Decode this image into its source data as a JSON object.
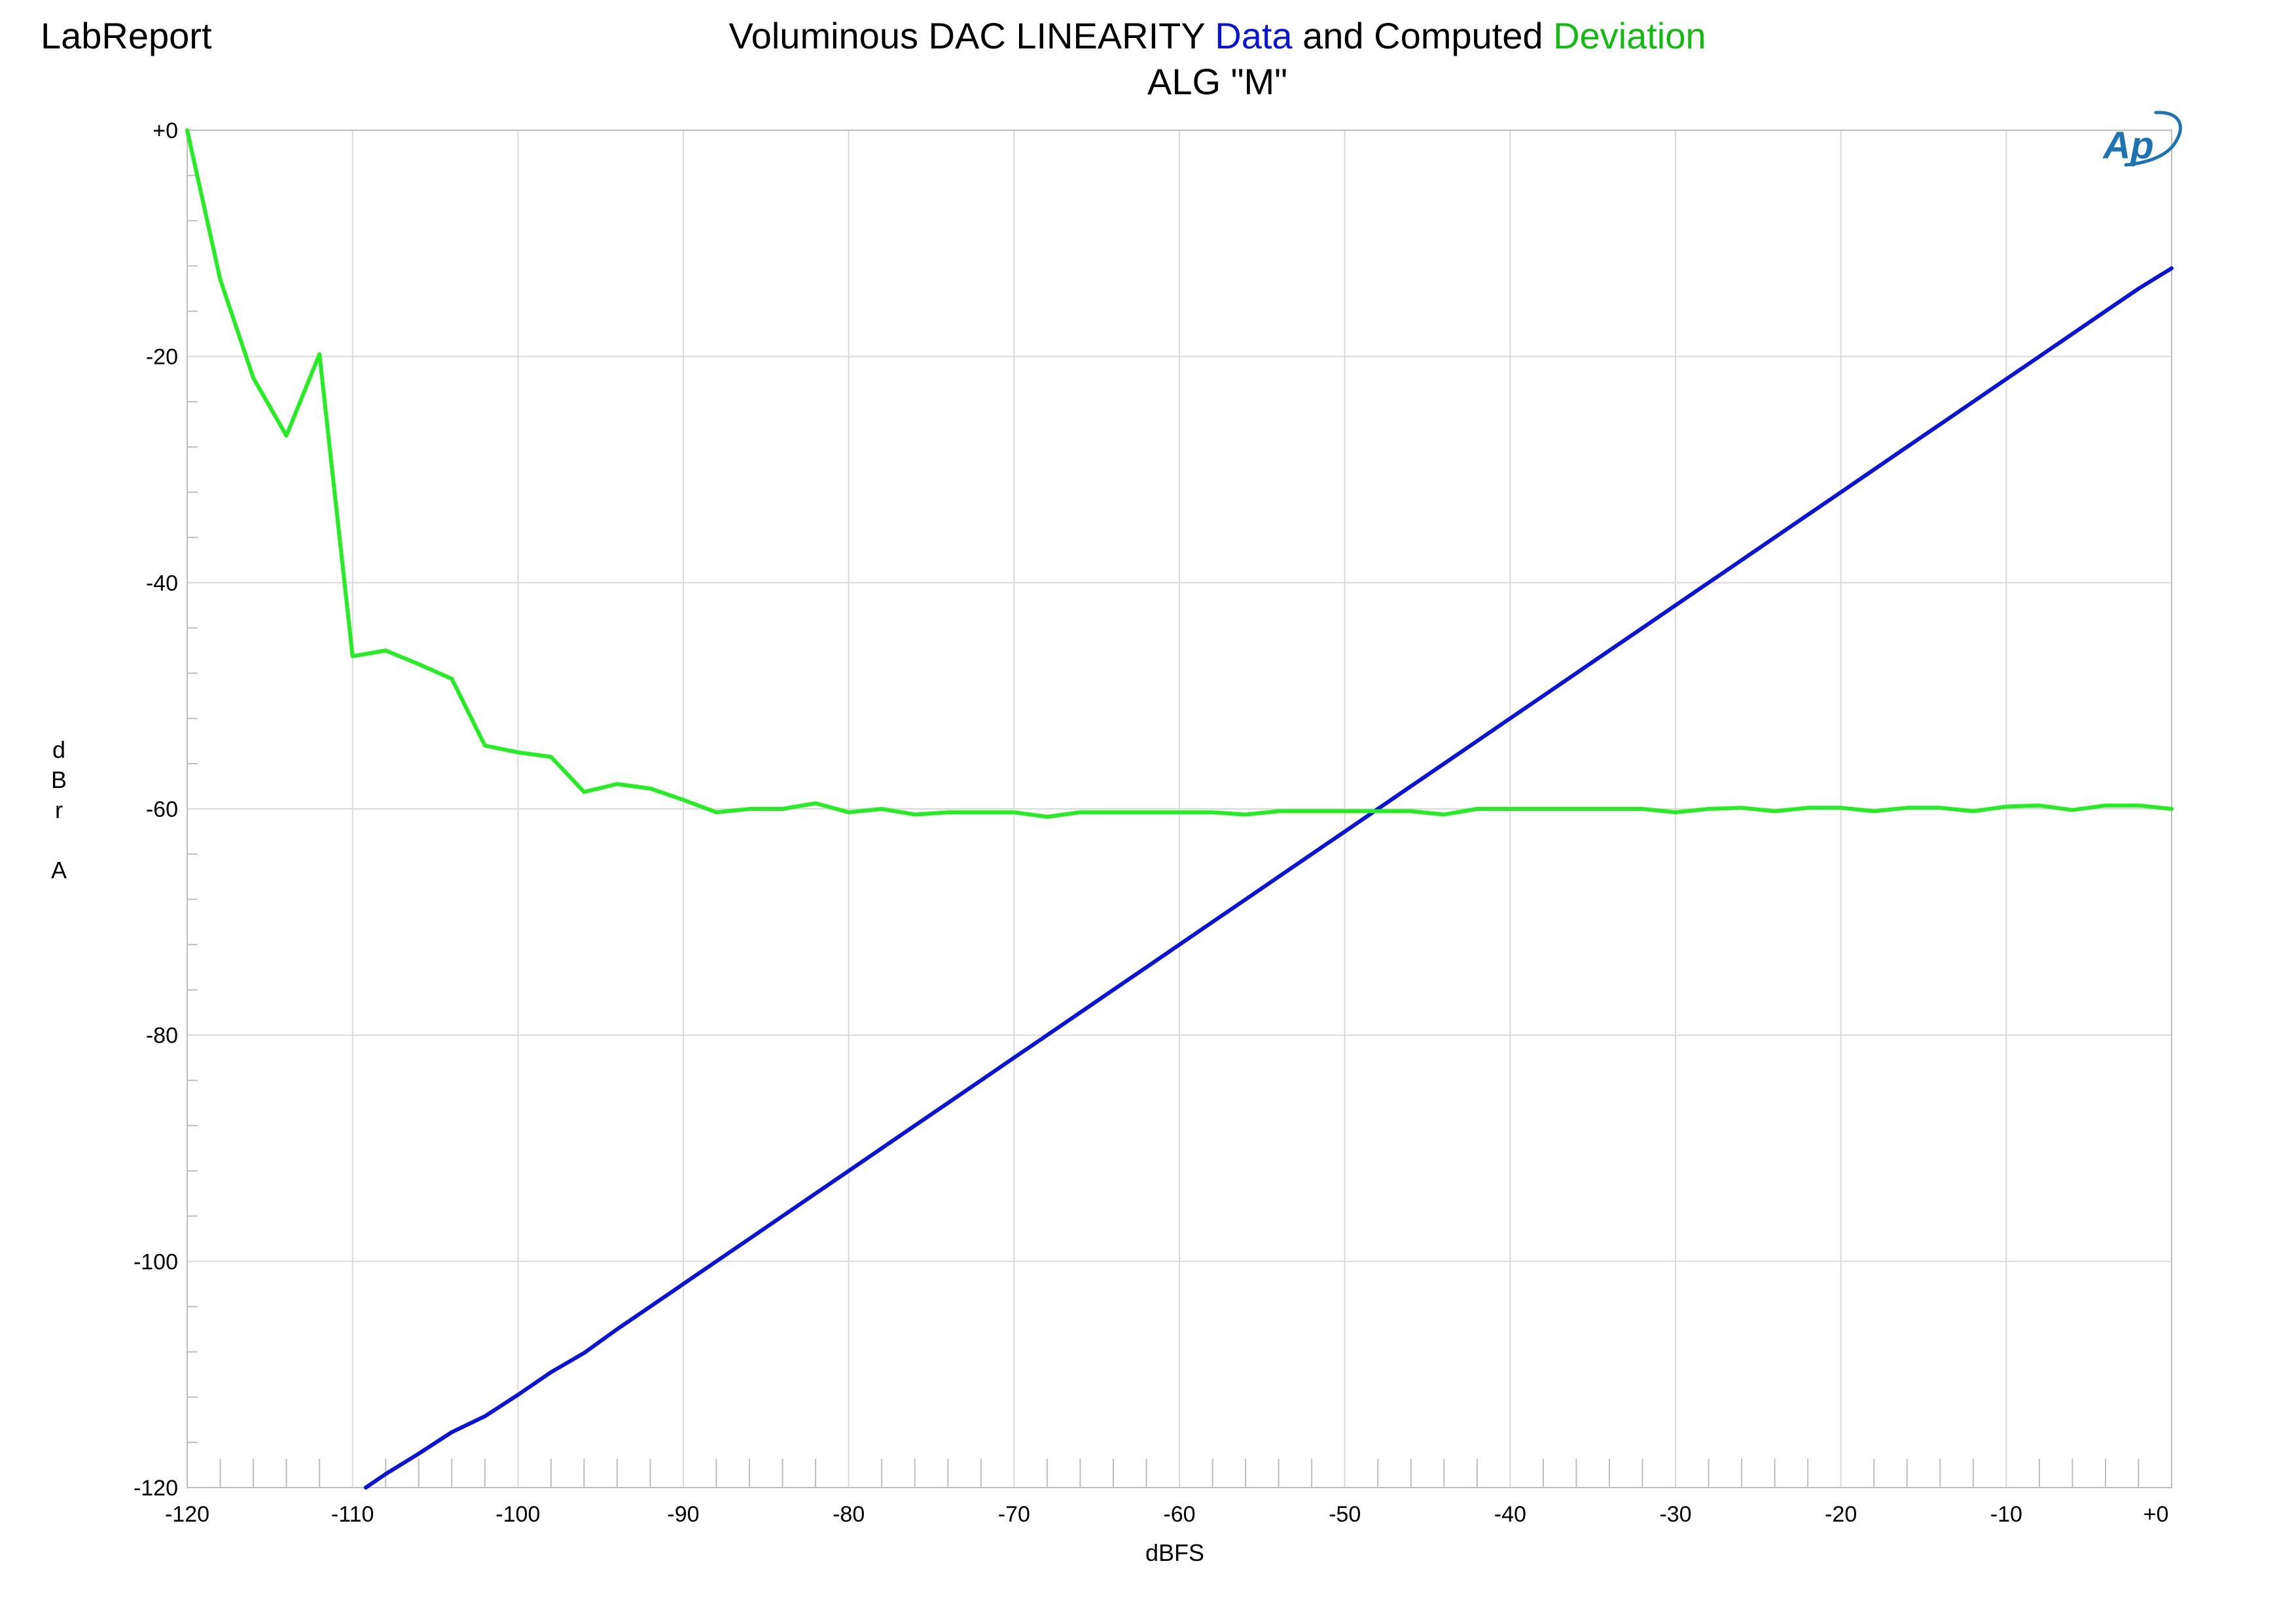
{
  "brand": "LabReport",
  "title": {
    "part1": "Voluminous  DAC LINEARITY  ",
    "part2": "Data",
    "part3": " and Computed ",
    "part4": "Deviation",
    "subtitle": "ALG \"M\""
  },
  "logo_text": "Ap",
  "colors": {
    "data": "#0a14d8",
    "deviation": "#22ee22",
    "deviation_title": "#11bb11",
    "grid": "#d9d9d9",
    "frame": "#bdbdbd"
  },
  "chart_data": {
    "type": "line",
    "xlabel": "dBFS",
    "ylabel": [
      "d",
      "B",
      "r",
      "",
      "A"
    ],
    "xlim": [
      -120,
      0
    ],
    "ylim": [
      -120,
      0
    ],
    "grid": true,
    "x_ticks": [
      -120,
      -110,
      -100,
      -90,
      -80,
      -70,
      -60,
      -50,
      -40,
      -30,
      -20,
      -10,
      0
    ],
    "x_tick_labels": [
      "-120",
      "-110",
      "-100",
      "-90",
      "-80",
      "-70",
      "-60",
      "-50",
      "-40",
      "-30",
      "-20",
      "-10",
      "+0"
    ],
    "y_ticks": [
      0,
      -20,
      -40,
      -60,
      -80,
      -100,
      -120
    ],
    "y_tick_labels": [
      "+0",
      "-20",
      "-40",
      "-60",
      "-80",
      "-100",
      "-120"
    ],
    "series": [
      {
        "name": "Data",
        "x": [
          -109.2,
          -108,
          -106,
          -104,
          -102,
          -100,
          -98,
          -96,
          -94,
          -92,
          -90,
          -88,
          -86,
          -84,
          -82,
          -80,
          -78,
          -76,
          -74,
          -72,
          -70,
          -68,
          -66,
          -64,
          -62,
          -60,
          -58,
          -56,
          -54,
          -52,
          -50,
          -48,
          -46,
          -44,
          -42,
          -40,
          -38,
          -36,
          -34,
          -32,
          -30,
          -28,
          -26,
          -24,
          -22,
          -20,
          -18,
          -16,
          -14,
          -12,
          -10,
          -8,
          -6,
          -4,
          -2,
          0
        ],
        "y": [
          -120,
          -118.8,
          -117,
          -115.1,
          -113.7,
          -111.8,
          -109.8,
          -108.1,
          -106,
          -104,
          -102,
          -100,
          -98,
          -96,
          -94,
          -92,
          -90,
          -88,
          -86,
          -84,
          -82,
          -80,
          -78,
          -76,
          -74,
          -72,
          -70,
          -68,
          -66,
          -64,
          -62,
          -60,
          -58,
          -56,
          -54,
          -52,
          -50,
          -48,
          -46,
          -44,
          -42,
          -40,
          -38,
          -36,
          -34,
          -32,
          -30,
          -28,
          -26,
          -24,
          -22,
          -20,
          -18,
          -16,
          -14,
          -12.2
        ]
      },
      {
        "name": "Deviation",
        "x": [
          -120,
          -118,
          -116,
          -114,
          -112,
          -110,
          -108,
          -106,
          -104,
          -102,
          -100,
          -98,
          -96,
          -94,
          -92,
          -90,
          -88,
          -86,
          -84,
          -82,
          -80,
          -78,
          -76,
          -74,
          -72,
          -70,
          -68,
          -66,
          -64,
          -62,
          -60,
          -58,
          -56,
          -54,
          -52,
          -50,
          -48,
          -46,
          -44,
          -42,
          -40,
          -38,
          -36,
          -34,
          -32,
          -30,
          -28,
          -26,
          -24,
          -22,
          -20,
          -18,
          -16,
          -14,
          -12,
          -10,
          -8,
          -6,
          -4,
          -2,
          0
        ],
        "y": [
          0,
          -13.2,
          -21.9,
          -27,
          -19.8,
          -46.5,
          -46,
          -47.2,
          -48.5,
          -54.4,
          -55,
          -55.4,
          -58.5,
          -57.8,
          -58.2,
          -59.2,
          -60.3,
          -60,
          -60,
          -59.5,
          -60.3,
          -60,
          -60.5,
          -60.3,
          -60.3,
          -60.3,
          -60.7,
          -60.3,
          -60.3,
          -60.3,
          -60.3,
          -60.3,
          -60.5,
          -60.2,
          -60.2,
          -60.2,
          -60.2,
          -60.2,
          -60.5,
          -60,
          -60,
          -60,
          -60,
          -60,
          -60,
          -60.3,
          -60,
          -59.9,
          -60.2,
          -59.9,
          -59.9,
          -60.2,
          -59.9,
          -59.9,
          -60.2,
          -59.8,
          -59.7,
          -60.1,
          -59.7,
          -59.7,
          -60
        ]
      }
    ]
  }
}
